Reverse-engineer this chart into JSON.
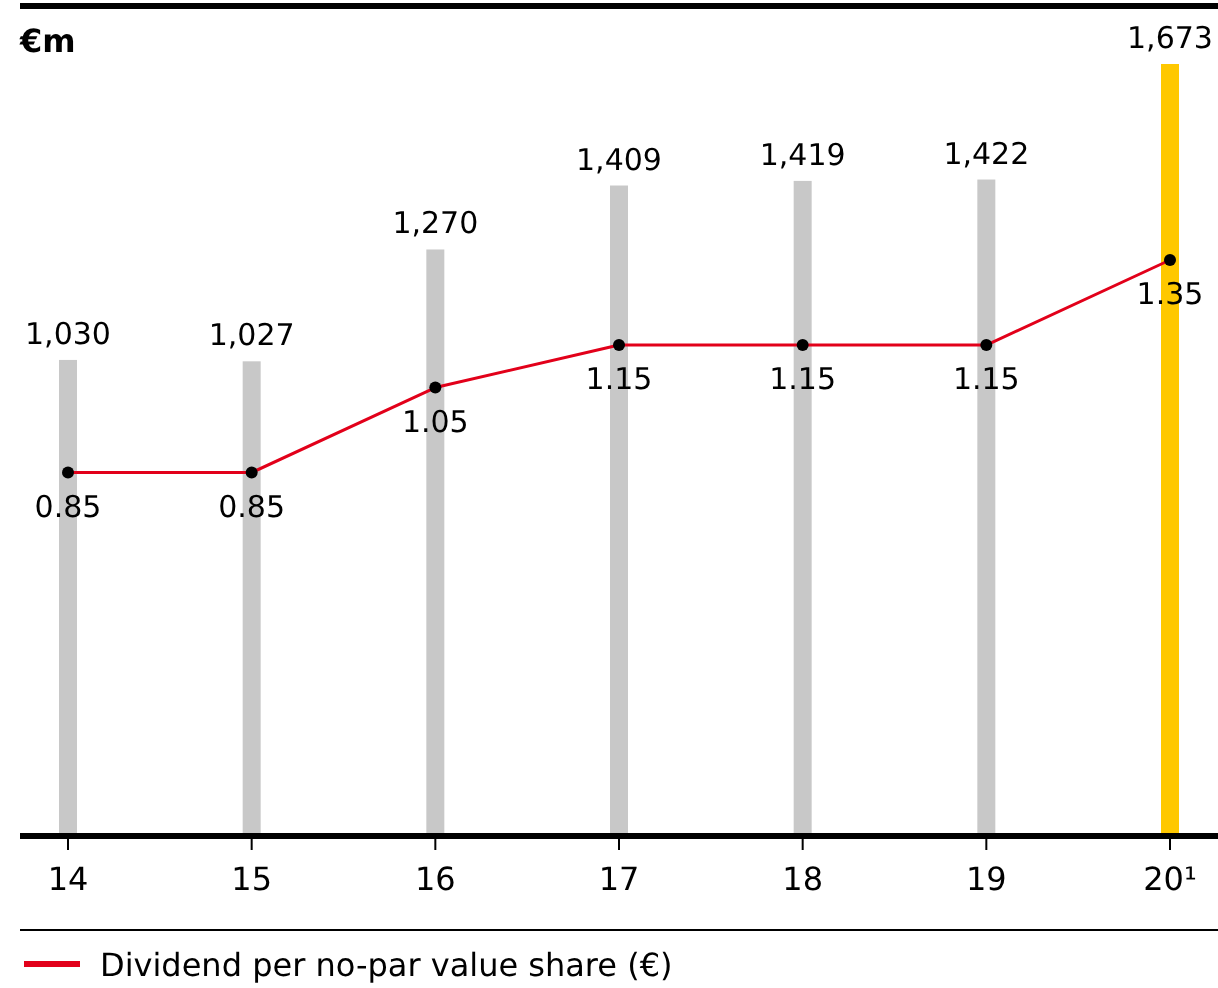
{
  "chart_data": {
    "type": "bar",
    "ylabel": "€m",
    "categories": [
      "14",
      "15",
      "16",
      "17",
      "18",
      "19",
      "20¹"
    ],
    "tick_labels": "x",
    "legend": "bottom",
    "series": [
      {
        "colors": [
          "#c8c8c8",
          "#c8c8c8",
          "#c8c8c8",
          "#c8c8c8",
          "#c8c8c8",
          "#c8c8c8",
          "#ffc800"
        ],
        "values": [
          1030,
          1027,
          1270,
          1409,
          1419,
          1422,
          1673
        ],
        "value_labels": [
          "1,030",
          "1,027",
          "1,270",
          "1,409",
          "1,419",
          "1,422",
          "1,673"
        ]
      },
      {
        "type": "line",
        "axis": "y2",
        "name": "Dividend per no-par value share (€)",
        "color": "#e2001a",
        "marker": "circle",
        "values": [
          0.85,
          0.85,
          1.05,
          1.15,
          1.15,
          1.15,
          1.35
        ],
        "value_labels": [
          "0.85",
          "0.85",
          "1.05",
          "1.15",
          "1.15",
          "1.15",
          "1.35"
        ]
      }
    ]
  }
}
